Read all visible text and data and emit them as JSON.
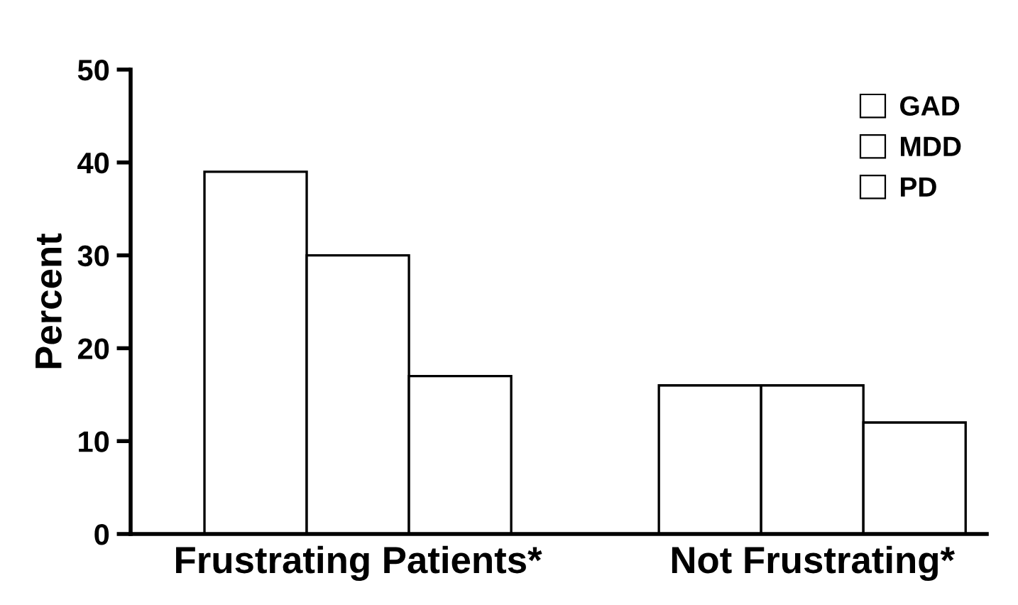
{
  "chart_data": {
    "type": "bar",
    "ylabel": "Percent",
    "categories": [
      "Frustrating Patients*",
      "Not Frustrating*"
    ],
    "series": [
      {
        "name": "GAD",
        "color": "#ffffff",
        "values": [
          39,
          16
        ]
      },
      {
        "name": "MDD",
        "color": "#ffffff",
        "values": [
          30,
          16
        ]
      },
      {
        "name": "PD",
        "color": "#ffffff",
        "values": [
          17,
          12
        ]
      }
    ],
    "ylim": [
      0,
      50
    ],
    "yticks": [
      0,
      10,
      20,
      30,
      40,
      50
    ],
    "grid": false,
    "legend": "top right"
  }
}
